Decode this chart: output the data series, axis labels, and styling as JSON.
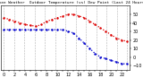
{
  "title": "Milwaukee Weather  Outdoor Temperature (vs) Dew Point (Last 24 Hours)",
  "bg_color": "#ffffff",
  "plot_bg_color": "#ffffff",
  "grid_color": "#aaaaaa",
  "temp_color": "#dd0000",
  "dew_color": "#0000cc",
  "title_color": "#000000",
  "text_color": "#000000",
  "temp_values": [
    46,
    44,
    42,
    40,
    38,
    37,
    36,
    38,
    42,
    44,
    46,
    48,
    50,
    50,
    48,
    46,
    42,
    38,
    34,
    30,
    26,
    22,
    20,
    18
  ],
  "dew_values": [
    32,
    32,
    32,
    32,
    32,
    32,
    32,
    32,
    32,
    32,
    32,
    32,
    30,
    28,
    22,
    16,
    10,
    4,
    0,
    -2,
    -4,
    -6,
    -8,
    -8
  ],
  "ylim": [
    -15,
    60
  ],
  "ytick_values": [
    -10,
    0,
    10,
    20,
    30,
    40,
    50
  ],
  "xlabel_fontsize": 3.5,
  "ylabel_fontsize": 3.5,
  "title_fontsize": 3.2,
  "n_points": 24,
  "x_labels": [
    "0",
    "",
    "2",
    "",
    "4",
    "",
    "6",
    "",
    "8",
    "",
    "10",
    "",
    "12",
    "",
    "14",
    "",
    "16",
    "",
    "18",
    "",
    "20",
    "",
    "22",
    ""
  ]
}
